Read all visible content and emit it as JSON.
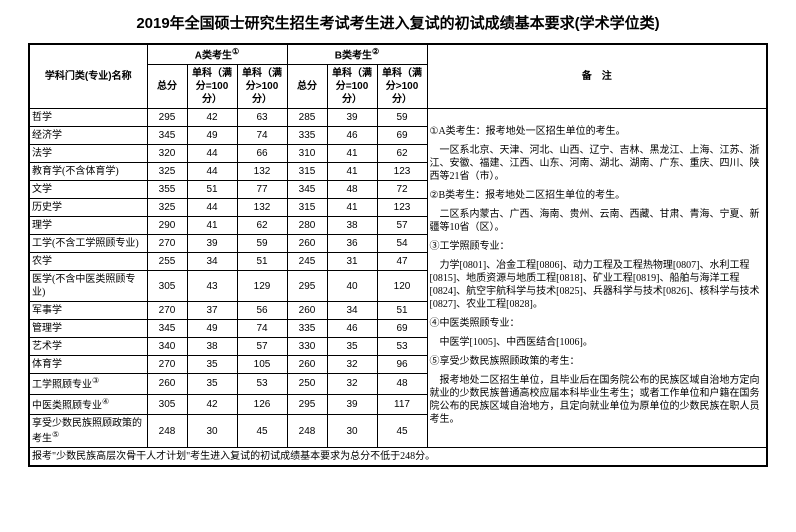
{
  "title": "2019年全国硕士研究生招生考试考生进入复试的初试成绩基本要求(学术学位类)",
  "header": {
    "subject": "学科门类(专业)名称",
    "groupA": "A类考生",
    "groupB": "B类考生",
    "supA": "①",
    "supB": "②",
    "notes": "备　注",
    "total": "总分",
    "single100": "单科（满分=100分）",
    "singleOver100": "单科（满分>100分）"
  },
  "rows": [
    {
      "s": "哲学",
      "a": [
        "295",
        "42",
        "63"
      ],
      "b": [
        "285",
        "39",
        "59"
      ]
    },
    {
      "s": "经济学",
      "a": [
        "345",
        "49",
        "74"
      ],
      "b": [
        "335",
        "46",
        "69"
      ]
    },
    {
      "s": "法学",
      "a": [
        "320",
        "44",
        "66"
      ],
      "b": [
        "310",
        "41",
        "62"
      ]
    },
    {
      "s": "教育学(不含体育学)",
      "a": [
        "325",
        "44",
        "132"
      ],
      "b": [
        "315",
        "41",
        "123"
      ]
    },
    {
      "s": "文学",
      "a": [
        "355",
        "51",
        "77"
      ],
      "b": [
        "345",
        "48",
        "72"
      ]
    },
    {
      "s": "历史学",
      "a": [
        "325",
        "44",
        "132"
      ],
      "b": [
        "315",
        "41",
        "123"
      ]
    },
    {
      "s": "理学",
      "a": [
        "290",
        "41",
        "62"
      ],
      "b": [
        "280",
        "38",
        "57"
      ]
    },
    {
      "s": "工学(不含工学照顾专业)",
      "a": [
        "270",
        "39",
        "59"
      ],
      "b": [
        "260",
        "36",
        "54"
      ]
    },
    {
      "s": "农学",
      "a": [
        "255",
        "34",
        "51"
      ],
      "b": [
        "245",
        "31",
        "47"
      ]
    },
    {
      "s": "医学(不含中医类照顾专业)",
      "a": [
        "305",
        "43",
        "129"
      ],
      "b": [
        "295",
        "40",
        "120"
      ]
    },
    {
      "s": "军事学",
      "a": [
        "270",
        "37",
        "56"
      ],
      "b": [
        "260",
        "34",
        "51"
      ]
    },
    {
      "s": "管理学",
      "a": [
        "345",
        "49",
        "74"
      ],
      "b": [
        "335",
        "46",
        "69"
      ]
    },
    {
      "s": "艺术学",
      "a": [
        "340",
        "38",
        "57"
      ],
      "b": [
        "330",
        "35",
        "53"
      ]
    },
    {
      "s": "体育学",
      "a": [
        "270",
        "35",
        "105"
      ],
      "b": [
        "260",
        "32",
        "96"
      ]
    },
    {
      "s": "工学照顾专业",
      "sup": "③",
      "a": [
        "260",
        "35",
        "53"
      ],
      "b": [
        "250",
        "32",
        "48"
      ]
    },
    {
      "s": "中医类照顾专业",
      "sup": "④",
      "a": [
        "305",
        "42",
        "126"
      ],
      "b": [
        "295",
        "39",
        "117"
      ]
    },
    {
      "s": "享受少数民族照顾政策的考生",
      "sup": "⑤",
      "a": [
        "248",
        "30",
        "45"
      ],
      "b": [
        "248",
        "30",
        "45"
      ]
    }
  ],
  "footer": "报考\"少数民族高层次骨干人才计划\"考生进入复试的初试成绩基本要求为总分不低于248分。",
  "notes": {
    "n1_head": "①A类考生：报考地处一区招生单位的考生。",
    "n1_body": "一区系北京、天津、河北、山西、辽宁、吉林、黑龙江、上海、江苏、浙江、安徽、福建、江西、山东、河南、湖北、湖南、广东、重庆、四川、陕西等21省（市）。",
    "n2_head": "②B类考生：报考地处二区招生单位的考生。",
    "n2_body": "二区系内蒙古、广西、海南、贵州、云南、西藏、甘肃、青海、宁夏、新疆等10省（区）。",
    "n3_head": "③工学照顾专业：",
    "n3_body": "力学[0801]、冶金工程[0806]、动力工程及工程热物理[0807]、水利工程[0815]、地质资源与地质工程[0818]、矿业工程[0819]、船舶与海洋工程[0824]、航空宇航科学与技术[0825]、兵器科学与技术[0826]、核科学与技术[0827]、农业工程[0828]。",
    "n4_head": "④中医类照顾专业：",
    "n4_body": "中医学[1005]、中西医结合[1006]。",
    "n5_head": "⑤享受少数民族照顾政策的考生：",
    "n5_body": "报考地处二区招生单位，且毕业后在国务院公布的民族区域自治地方定向就业的少数民族普通高校应届本科毕业生考生；或者工作单位和户籍在国务院公布的民族区域自治地方，且定向就业单位为原单位的少数民族在职人员考生。"
  },
  "style": {
    "border_color": "#000000",
    "background": "#ffffff",
    "title_fontsize": 15,
    "body_fontsize": 10,
    "notes_fontsize": 9
  }
}
